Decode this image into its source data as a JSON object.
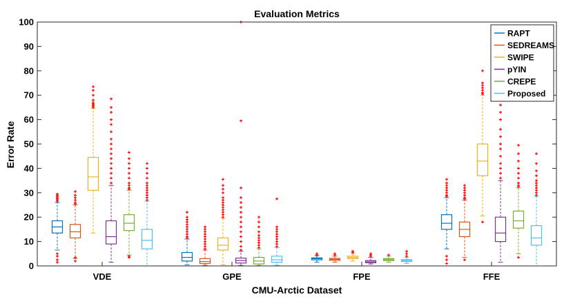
{
  "chart_data": {
    "type": "boxplot",
    "title": "Evaluation Metrics",
    "xlabel": "CMU-Arctic Dataset",
    "ylabel": "Error Rate",
    "ylim": [
      0,
      100
    ],
    "yticks": [
      0,
      10,
      20,
      30,
      40,
      50,
      60,
      70,
      80,
      90,
      100
    ],
    "categories": [
      "VDE",
      "GPE",
      "FPE",
      "FFE"
    ],
    "legend_position": "top-right",
    "grid": false,
    "outlier_color": "#ff0000",
    "series": [
      {
        "name": "RAPT",
        "color": "#0072bd",
        "boxes": [
          {
            "whisker_low": 6.5,
            "q1": 13.5,
            "median": 16,
            "q3": 18.5,
            "whisker_high": 26,
            "outliers": [
              1.5,
              2.5,
              4,
              5,
              26.5,
              27,
              27.5,
              28,
              28.5,
              29,
              29.5
            ]
          },
          {
            "whisker_low": 0.5,
            "q1": 2,
            "median": 3.5,
            "q3": 5.5,
            "whisker_high": 11,
            "outliers": [
              11.5,
              12,
              13,
              14,
              15,
              16,
              17,
              18,
              19,
              20,
              22
            ]
          },
          {
            "whisker_low": 1.5,
            "q1": 2.5,
            "median": 3,
            "q3": 3.3,
            "whisker_high": 4.2,
            "outliers": [
              4.5,
              5
            ]
          },
          {
            "whisker_low": 7,
            "q1": 15,
            "median": 17.5,
            "q3": 21,
            "whisker_high": 28,
            "outliers": [
              1,
              2.5,
              4,
              28.5,
              29,
              30,
              31,
              32,
              33,
              34,
              35.5
            ]
          }
        ]
      },
      {
        "name": "SEDREAMS",
        "color": "#d95319",
        "boxes": [
          {
            "whisker_low": 3,
            "q1": 11.5,
            "median": 14,
            "q3": 17,
            "whisker_high": 25,
            "outliers": [
              2,
              3.5,
              25.5,
              26,
              27,
              28,
              29,
              30.5
            ]
          },
          {
            "whisker_low": 0.3,
            "q1": 1,
            "median": 1.8,
            "q3": 3,
            "whisker_high": 6.5,
            "outliers": [
              7,
              8,
              9,
              10,
              11,
              12,
              13,
              14,
              15,
              16
            ]
          },
          {
            "whisker_low": 1.5,
            "q1": 2.3,
            "median": 2.7,
            "q3": 3.1,
            "whisker_high": 4,
            "outliers": [
              4.5,
              5
            ]
          },
          {
            "whisker_low": 3.5,
            "q1": 12,
            "median": 15,
            "q3": 18,
            "whisker_high": 27,
            "outliers": [
              2.5,
              27.5,
              28,
              29,
              30,
              31,
              32,
              33
            ]
          }
        ]
      },
      {
        "name": "SWIPE",
        "color": "#edb120",
        "boxes": [
          {
            "whisker_low": 13.5,
            "q1": 31,
            "median": 36.5,
            "q3": 44.5,
            "whisker_high": 64.5,
            "outliers": [
              65,
              65.5,
              66,
              66.5,
              67,
              68,
              70,
              72,
              73.5
            ]
          },
          {
            "whisker_low": 0.5,
            "q1": 6.5,
            "median": 8.5,
            "q3": 11.5,
            "whisker_high": 19.5,
            "outliers": [
              20,
              21,
              22,
              23,
              24,
              25,
              26,
              27,
              28,
              30,
              31.5,
              33,
              35.5
            ]
          },
          {
            "whisker_low": 2,
            "q1": 3,
            "median": 3.5,
            "q3": 4,
            "whisker_high": 5,
            "outliers": [
              5.5,
              6
            ]
          },
          {
            "whisker_low": 20.5,
            "q1": 37,
            "median": 43,
            "q3": 50,
            "whisker_high": 70,
            "outliers": [
              18,
              70.5,
              71,
              72,
              73,
              74,
              75,
              80
            ]
          }
        ]
      },
      {
        "name": "pYIN",
        "color": "#7e2f8e",
        "boxes": [
          {
            "whisker_low": 1.5,
            "q1": 9,
            "median": 12,
            "q3": 18.5,
            "whisker_high": 33,
            "outliers": [
              34,
              36,
              38,
              40,
              42,
              44,
              46,
              48,
              50,
              52,
              55,
              58,
              60,
              63,
              65,
              68.5
            ]
          },
          {
            "whisker_low": 0.2,
            "q1": 1.2,
            "median": 2.2,
            "q3": 3.2,
            "whisker_high": 6,
            "outliers": [
              6.5,
              8,
              10,
              12,
              14,
              16,
              18,
              20,
              22,
              24,
              26,
              28,
              32,
              59.5,
              100
            ]
          },
          {
            "whisker_low": 0.8,
            "q1": 1.3,
            "median": 1.7,
            "q3": 2.2,
            "whisker_high": 3.5,
            "outliers": [
              4,
              4.5,
              5
            ]
          },
          {
            "whisker_low": 1.5,
            "q1": 10,
            "median": 13.5,
            "q3": 20,
            "whisker_high": 35,
            "outliers": [
              36,
              38,
              40,
              42,
              45,
              48,
              50,
              53,
              56,
              60,
              63,
              66,
              68.5
            ]
          }
        ]
      },
      {
        "name": "CREPE",
        "color": "#77ac30",
        "boxes": [
          {
            "whisker_low": 4.5,
            "q1": 14.5,
            "median": 17.5,
            "q3": 21,
            "whisker_high": 31,
            "outliers": [
              3.5,
              4,
              31.5,
              32,
              33,
              34,
              36,
              38,
              40,
              42,
              44,
              46.5
            ]
          },
          {
            "whisker_low": 0.2,
            "q1": 0.8,
            "median": 2,
            "q3": 3.5,
            "whisker_high": 7,
            "outliers": [
              7.5,
              8.5,
              9.5,
              10.5,
              11.5,
              12.5,
              14,
              16,
              18,
              20
            ]
          },
          {
            "whisker_low": 1.5,
            "q1": 2.2,
            "median": 2.6,
            "q3": 3,
            "whisker_high": 4,
            "outliers": [
              4.5
            ]
          },
          {
            "whisker_low": 5,
            "q1": 15.5,
            "median": 18.5,
            "q3": 22.5,
            "whisker_high": 32,
            "outliers": [
              3.5,
              32.5,
              33,
              34,
              36,
              38,
              40,
              43,
              46,
              49.5
            ]
          }
        ]
      },
      {
        "name": "Proposed",
        "color": "#4dbeee",
        "boxes": [
          {
            "whisker_low": 0,
            "q1": 7,
            "median": 10.5,
            "q3": 15,
            "whisker_high": 26.5,
            "outliers": [
              27,
              28,
              29,
              30,
              31,
              32,
              33,
              34,
              36,
              38,
              40,
              42
            ]
          },
          {
            "whisker_low": 0.3,
            "q1": 1.5,
            "median": 2.5,
            "q3": 4,
            "whisker_high": 7.5,
            "outliers": [
              8,
              9,
              10,
              11,
              12,
              13,
              14,
              15,
              16,
              27.5
            ]
          },
          {
            "whisker_low": 1,
            "q1": 1.8,
            "median": 2.2,
            "q3": 2.6,
            "whisker_high": 3.5,
            "outliers": [
              4,
              5,
              6
            ]
          },
          {
            "whisker_low": 0,
            "q1": 8.5,
            "median": 11.5,
            "q3": 16.5,
            "whisker_high": 28.5,
            "outliers": [
              29,
              30,
              31,
              32,
              33,
              34,
              35,
              37,
              39,
              42,
              46
            ]
          }
        ]
      }
    ]
  }
}
